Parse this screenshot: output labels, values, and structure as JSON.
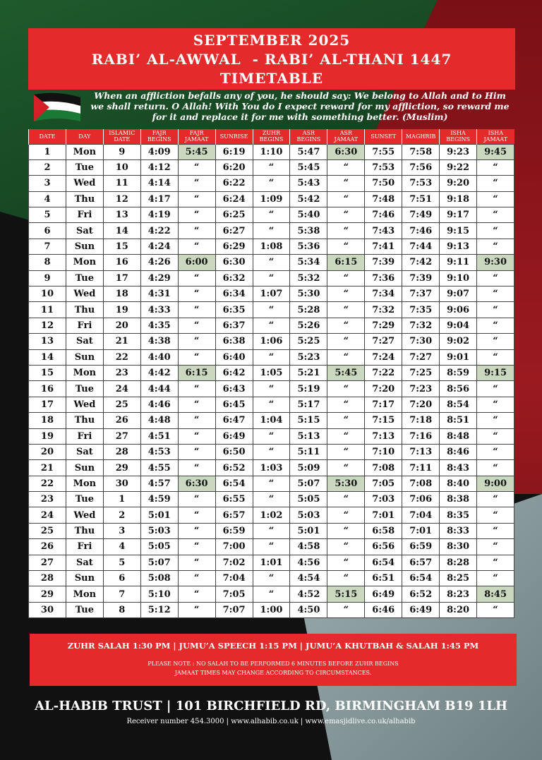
{
  "header": {
    "line1": "SEPTEMBER 2025",
    "line2": "RABI’ AL-AWWAL  - RABI’ AL-THANI 1447",
    "line3": "TIMETABLE"
  },
  "quote": "When an affliction befalls any of you, he should say: We belong to Allah and to Him we shall return. O Allah! With You do I expect reward for my affliction, so reward me for it and replace it for me with something better. (Muslim)",
  "colors": {
    "red": "#e42a2a",
    "highlight": "#c9d8bf"
  },
  "table": {
    "headers": [
      "DATE",
      "DAY",
      "ISLAMIC DATE",
      "FAJR BEGINS",
      "FAJR JAMAAT",
      "SUNRISE",
      "ZUHR BEGINS",
      "ASR BEGINS",
      "ASR JAMAAT",
      "SUNSET",
      "MAGHRIB",
      "ISHA BEGINS",
      "ISHA JAMAAT"
    ],
    "rows": [
      [
        "1",
        "Mon",
        "9",
        "4:09",
        "5:45",
        "6:19",
        "1:10",
        "5:47",
        "6:30",
        "7:55",
        "7:58",
        "9:23",
        "9:45"
      ],
      [
        "2",
        "Tue",
        "10",
        "4:12",
        "“",
        "6:20",
        "“",
        "5:45",
        "“",
        "7:53",
        "7:56",
        "9:22",
        "“"
      ],
      [
        "3",
        "Wed",
        "11",
        "4:14",
        "“",
        "6:22",
        "“",
        "5:43",
        "“",
        "7:50",
        "7:53",
        "9:20",
        "“"
      ],
      [
        "4",
        "Thu",
        "12",
        "4:17",
        "“",
        "6:24",
        "1:09",
        "5:42",
        "“",
        "7:48",
        "7:51",
        "9:18",
        "“"
      ],
      [
        "5",
        "Fri",
        "13",
        "4:19",
        "“",
        "6:25",
        "“",
        "5:40",
        "“",
        "7:46",
        "7:49",
        "9:17",
        "“"
      ],
      [
        "6",
        "Sat",
        "14",
        "4:22",
        "“",
        "6:27",
        "“",
        "5:38",
        "“",
        "7:43",
        "7:46",
        "9:15",
        "“"
      ],
      [
        "7",
        "Sun",
        "15",
        "4:24",
        "“",
        "6:29",
        "1:08",
        "5:36",
        "“",
        "7:41",
        "7:44",
        "9:13",
        "“"
      ],
      [
        "8",
        "Mon",
        "16",
        "4:26",
        "6:00",
        "6:30",
        "“",
        "5:34",
        "6:15",
        "7:39",
        "7:42",
        "9:11",
        "9:30"
      ],
      [
        "9",
        "Tue",
        "17",
        "4:29",
        "“",
        "6:32",
        "“",
        "5:32",
        "“",
        "7:36",
        "7:39",
        "9:10",
        "“"
      ],
      [
        "10",
        "Wed",
        "18",
        "4:31",
        "“",
        "6:34",
        "1:07",
        "5:30",
        "“",
        "7:34",
        "7:37",
        "9:07",
        "“"
      ],
      [
        "11",
        "Thu",
        "19",
        "4:33",
        "“",
        "6:35",
        "“",
        "5:28",
        "“",
        "7:32",
        "7:35",
        "9:06",
        "“"
      ],
      [
        "12",
        "Fri",
        "20",
        "4:35",
        "“",
        "6:37",
        "“",
        "5:26",
        "“",
        "7:29",
        "7:32",
        "9:04",
        "“"
      ],
      [
        "13",
        "Sat",
        "21",
        "4:38",
        "“",
        "6:38",
        "1:06",
        "5:25",
        "“",
        "7:27",
        "7:30",
        "9:02",
        "“"
      ],
      [
        "14",
        "Sun",
        "22",
        "4:40",
        "“",
        "6:40",
        "“",
        "5:23",
        "“",
        "7:24",
        "7:27",
        "9:01",
        "“"
      ],
      [
        "15",
        "Mon",
        "23",
        "4:42",
        "6:15",
        "6:42",
        "1:05",
        "5:21",
        "5:45",
        "7:22",
        "7:25",
        "8:59",
        "9:15"
      ],
      [
        "16",
        "Tue",
        "24",
        "4:44",
        "“",
        "6:43",
        "“",
        "5:19",
        "“",
        "7:20",
        "7:23",
        "8:56",
        "“"
      ],
      [
        "17",
        "Wed",
        "25",
        "4:46",
        "“",
        "6:45",
        "“",
        "5:17",
        "“",
        "7:17",
        "7:20",
        "8:54",
        "“"
      ],
      [
        "18",
        "Thu",
        "26",
        "4:48",
        "“",
        "6:47",
        "1:04",
        "5:15",
        "“",
        "7:15",
        "7:18",
        "8:51",
        "“"
      ],
      [
        "19",
        "Fri",
        "27",
        "4:51",
        "“",
        "6:49",
        "“",
        "5:13",
        "“",
        "7:13",
        "7:16",
        "8:48",
        "“"
      ],
      [
        "20",
        "Sat",
        "28",
        "4:53",
        "“",
        "6:50",
        "“",
        "5:11",
        "“",
        "7:10",
        "7:13",
        "8:46",
        "“"
      ],
      [
        "21",
        "Sun",
        "29",
        "4:55",
        "“",
        "6:52",
        "1:03",
        "5:09",
        "“",
        "7:08",
        "7:11",
        "8:43",
        "“"
      ],
      [
        "22",
        "Mon",
        "30",
        "4:57",
        "6:30",
        "6:54",
        "“",
        "5:07",
        "5:30",
        "7:05",
        "7:08",
        "8:40",
        "9:00"
      ],
      [
        "23",
        "Tue",
        "1",
        "4:59",
        "“",
        "6:55",
        "“",
        "5:05",
        "“",
        "7:03",
        "7:06",
        "8:38",
        "“"
      ],
      [
        "24",
        "Wed",
        "2",
        "5:01",
        "“",
        "6:57",
        "1:02",
        "5:03",
        "“",
        "7:01",
        "7:04",
        "8:35",
        "“"
      ],
      [
        "25",
        "Thu",
        "3",
        "5:03",
        "“",
        "6:59",
        "“",
        "5:01",
        "“",
        "6:58",
        "7:01",
        "8:33",
        "“"
      ],
      [
        "26",
        "Fri",
        "4",
        "5:05",
        "“",
        "7:00",
        "“",
        "4:58",
        "“",
        "6:56",
        "6:59",
        "8:30",
        "“"
      ],
      [
        "27",
        "Sat",
        "5",
        "5:07",
        "“",
        "7:02",
        "1:01",
        "4:56",
        "“",
        "6:54",
        "6:57",
        "8:28",
        "“"
      ],
      [
        "28",
        "Sun",
        "6",
        "5:08",
        "“",
        "7:04",
        "“",
        "4:54",
        "“",
        "6:51",
        "6:54",
        "8:25",
        "“"
      ],
      [
        "29",
        "Mon",
        "7",
        "5:10",
        "“",
        "7:05",
        "“",
        "4:52",
        "5:15",
        "6:49",
        "6:52",
        "8:23",
        "8:45"
      ],
      [
        "30",
        "Tue",
        "8",
        "5:12",
        "“",
        "7:07",
        "1:00",
        "4:50",
        "“",
        "6:46",
        "6:49",
        "8:20",
        "“"
      ]
    ]
  },
  "notice": {
    "times": "ZUHR SALAH 1:30 PM | JUMU’A SPEECH 1:15 PM | JUMU’A KHUTBAH & SALAH 1:45 PM",
    "note1": "PLEASE NOTE : NO SALAH TO BE PERFORMED 6 MINUTES BEFORE ZUHR BEGINS",
    "note2": "JAMAAT TIMES MAY CHANGE ACCORDING TO CIRCUMSTANCES."
  },
  "footer": {
    "trust": "AL-HABIB TRUST | 101 BIRCHFIELD RD, BIRMINGHAM B19 1LH",
    "contact": "Receiver number 454.3000 | www.alhabib.co.uk | www.emasjidlive.co.uk/alhabib"
  }
}
